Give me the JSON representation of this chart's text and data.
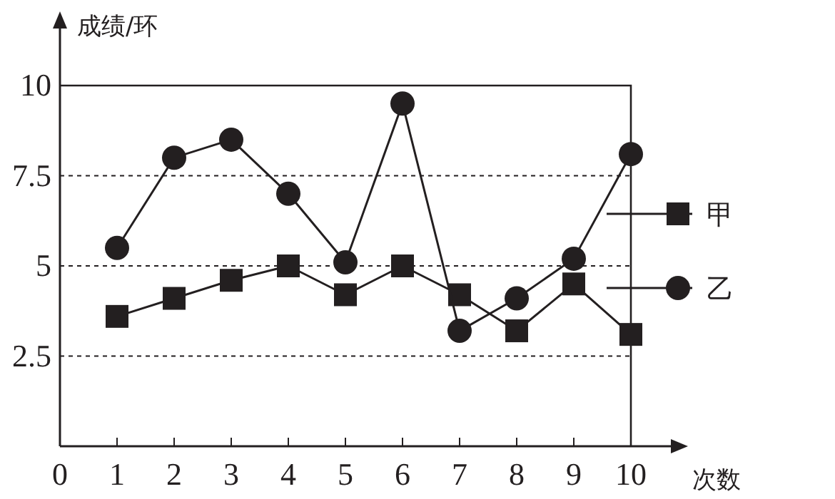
{
  "chart_data": {
    "type": "line",
    "xlabel": "次数",
    "ylabel": "成绩/环",
    "x": [
      1,
      2,
      3,
      4,
      5,
      6,
      7,
      8,
      9,
      10
    ],
    "series": [
      {
        "name": "甲",
        "color": "#231f20",
        "marker": "square",
        "values": [
          3.6,
          4.1,
          4.6,
          5.0,
          4.2,
          5.0,
          4.2,
          3.2,
          4.5,
          3.1
        ]
      },
      {
        "name": "乙",
        "color": "#231f20",
        "marker": "circle",
        "values": [
          5.5,
          8.0,
          8.5,
          7.0,
          5.1,
          9.5,
          3.2,
          4.1,
          5.2,
          8.1
        ]
      }
    ],
    "xlim": [
      0,
      10
    ],
    "xticks": [
      0,
      1,
      2,
      3,
      4,
      5,
      6,
      7,
      8,
      9,
      10
    ],
    "ylim": [
      0,
      10
    ],
    "yticks": [
      2.5,
      5,
      7.5,
      10
    ],
    "grid": "y",
    "legend": "right",
    "line_style": "solid"
  }
}
